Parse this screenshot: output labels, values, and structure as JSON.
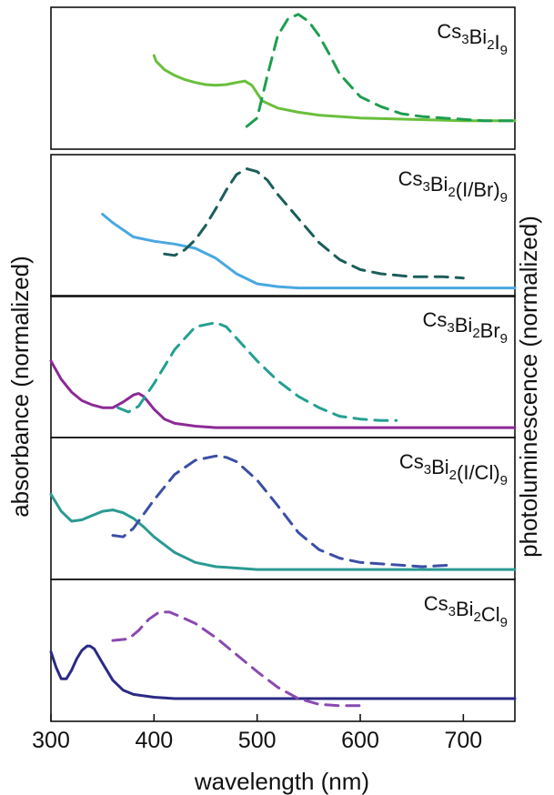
{
  "chart_data": {
    "type": "line",
    "title": "",
    "xlabel": "wavelength (nm)",
    "ylabel_left": "absorbance (normalized)",
    "ylabel_right": "photoluminescence (normalized)",
    "xlim": [
      300,
      750
    ],
    "xticks": [
      300,
      400,
      500,
      600,
      700
    ],
    "grid": false,
    "legend": "none",
    "panels": [
      {
        "label_parts": [
          [
            "Cs",
            ""
          ],
          [
            "3",
            "sub"
          ],
          [
            "Bi",
            ""
          ],
          [
            "2",
            "sub"
          ],
          [
            "I",
            ""
          ],
          [
            "9",
            "sub"
          ]
        ],
        "absorbance": {
          "color": "#6abf3c",
          "x": [
            400,
            402,
            410,
            420,
            430,
            440,
            450,
            460,
            470,
            480,
            488,
            495,
            505,
            520,
            540,
            560,
            600,
            650,
            700,
            750
          ],
          "y": [
            0.66,
            0.62,
            0.56,
            0.52,
            0.49,
            0.47,
            0.455,
            0.45,
            0.455,
            0.47,
            0.48,
            0.45,
            0.34,
            0.29,
            0.26,
            0.24,
            0.22,
            0.21,
            0.2,
            0.2
          ]
        },
        "photoluminescence": {
          "color": "#1e9e50",
          "x": [
            490,
            500,
            510,
            520,
            530,
            540,
            550,
            560,
            570,
            580,
            600,
            620,
            640,
            660,
            680,
            700,
            720,
            740,
            750
          ],
          "y": [
            0.16,
            0.22,
            0.52,
            0.8,
            0.92,
            0.95,
            0.9,
            0.8,
            0.67,
            0.53,
            0.37,
            0.3,
            0.25,
            0.23,
            0.22,
            0.21,
            0.2,
            0.2,
            0.2
          ]
        }
      },
      {
        "label_parts": [
          [
            "Cs",
            ""
          ],
          [
            "3",
            "sub"
          ],
          [
            "Bi",
            ""
          ],
          [
            "2",
            "sub"
          ],
          [
            "(I/Br)",
            ""
          ],
          [
            "9",
            "sub"
          ]
        ],
        "absorbance": {
          "color": "#49a8e0",
          "x": [
            350,
            360,
            380,
            400,
            420,
            440,
            460,
            480,
            500,
            520,
            540,
            560,
            600,
            650,
            700,
            750
          ],
          "y": [
            0.58,
            0.52,
            0.42,
            0.39,
            0.37,
            0.34,
            0.27,
            0.16,
            0.09,
            0.07,
            0.06,
            0.06,
            0.06,
            0.06,
            0.06,
            0.06
          ]
        },
        "photoluminescence": {
          "color": "#1b5e5a",
          "x": [
            410,
            420,
            430,
            440,
            450,
            460,
            470,
            480,
            490,
            500,
            510,
            520,
            540,
            560,
            580,
            600,
            620,
            650,
            680,
            700
          ],
          "y": [
            0.3,
            0.29,
            0.33,
            0.4,
            0.5,
            0.62,
            0.75,
            0.86,
            0.9,
            0.88,
            0.82,
            0.72,
            0.55,
            0.38,
            0.26,
            0.19,
            0.16,
            0.14,
            0.14,
            0.13
          ]
        }
      },
      {
        "label_parts": [
          [
            "Cs",
            ""
          ],
          [
            "3",
            "sub"
          ],
          [
            "Bi",
            ""
          ],
          [
            "2",
            "sub"
          ],
          [
            "Br",
            ""
          ],
          [
            "9",
            "sub"
          ]
        ],
        "absorbance": {
          "color": "#8c2a96",
          "x": [
            300,
            310,
            320,
            330,
            340,
            350,
            360,
            370,
            380,
            385,
            390,
            400,
            410,
            420,
            440,
            460,
            500,
            550,
            600,
            650,
            700,
            750
          ],
          "y": [
            0.54,
            0.41,
            0.32,
            0.26,
            0.23,
            0.21,
            0.21,
            0.25,
            0.3,
            0.31,
            0.29,
            0.2,
            0.13,
            0.1,
            0.08,
            0.07,
            0.07,
            0.07,
            0.07,
            0.07,
            0.07,
            0.07
          ]
        },
        "photoluminescence": {
          "color": "#23a092",
          "x": [
            365,
            375,
            385,
            400,
            420,
            440,
            460,
            470,
            480,
            500,
            520,
            540,
            560,
            580,
            600,
            620,
            635
          ],
          "y": [
            0.21,
            0.18,
            0.22,
            0.38,
            0.62,
            0.78,
            0.81,
            0.78,
            0.7,
            0.54,
            0.4,
            0.29,
            0.21,
            0.15,
            0.13,
            0.12,
            0.12
          ]
        }
      },
      {
        "label_parts": [
          [
            "Cs",
            ""
          ],
          [
            "3",
            "sub"
          ],
          [
            "Bi",
            ""
          ],
          [
            "2",
            "sub"
          ],
          [
            "(I/Cl)",
            ""
          ],
          [
            "9",
            "sub"
          ]
        ],
        "absorbance": {
          "color": "#2a9a92",
          "x": [
            300,
            310,
            320,
            330,
            340,
            350,
            360,
            370,
            380,
            390,
            400,
            420,
            440,
            460,
            480,
            500,
            550,
            600,
            650,
            700,
            750
          ],
          "y": [
            0.6,
            0.48,
            0.41,
            0.42,
            0.45,
            0.48,
            0.49,
            0.47,
            0.43,
            0.37,
            0.3,
            0.19,
            0.12,
            0.09,
            0.08,
            0.07,
            0.07,
            0.07,
            0.07,
            0.07,
            0.07
          ]
        },
        "photoluminescence": {
          "color": "#3c4ea6",
          "x": [
            360,
            370,
            380,
            400,
            420,
            440,
            460,
            470,
            480,
            500,
            520,
            540,
            560,
            580,
            600,
            640,
            660,
            685
          ],
          "y": [
            0.31,
            0.3,
            0.36,
            0.56,
            0.74,
            0.84,
            0.87,
            0.86,
            0.83,
            0.7,
            0.52,
            0.33,
            0.21,
            0.15,
            0.12,
            0.1,
            0.09,
            0.1
          ]
        }
      },
      {
        "label_parts": [
          [
            "Cs",
            ""
          ],
          [
            "3",
            "sub"
          ],
          [
            "Bi",
            ""
          ],
          [
            "2",
            "sub"
          ],
          [
            "Cl",
            ""
          ],
          [
            "9",
            "sub"
          ]
        ],
        "absorbance": {
          "color": "#2b2a86",
          "x": [
            300,
            305,
            310,
            315,
            320,
            325,
            330,
            335,
            338,
            342,
            350,
            360,
            370,
            380,
            400,
            420,
            450,
            500,
            600,
            700,
            750
          ],
          "y": [
            0.49,
            0.38,
            0.3,
            0.3,
            0.36,
            0.44,
            0.5,
            0.53,
            0.53,
            0.51,
            0.41,
            0.29,
            0.22,
            0.19,
            0.17,
            0.16,
            0.16,
            0.16,
            0.16,
            0.16,
            0.16
          ]
        },
        "photoluminescence": {
          "color": "#8a4ab0",
          "x": [
            360,
            375,
            385,
            395,
            405,
            415,
            425,
            440,
            460,
            480,
            500,
            520,
            540,
            560,
            580,
            600
          ],
          "y": [
            0.57,
            0.58,
            0.64,
            0.72,
            0.77,
            0.77,
            0.74,
            0.69,
            0.59,
            0.47,
            0.35,
            0.24,
            0.16,
            0.12,
            0.11,
            0.11
          ]
        }
      }
    ]
  }
}
